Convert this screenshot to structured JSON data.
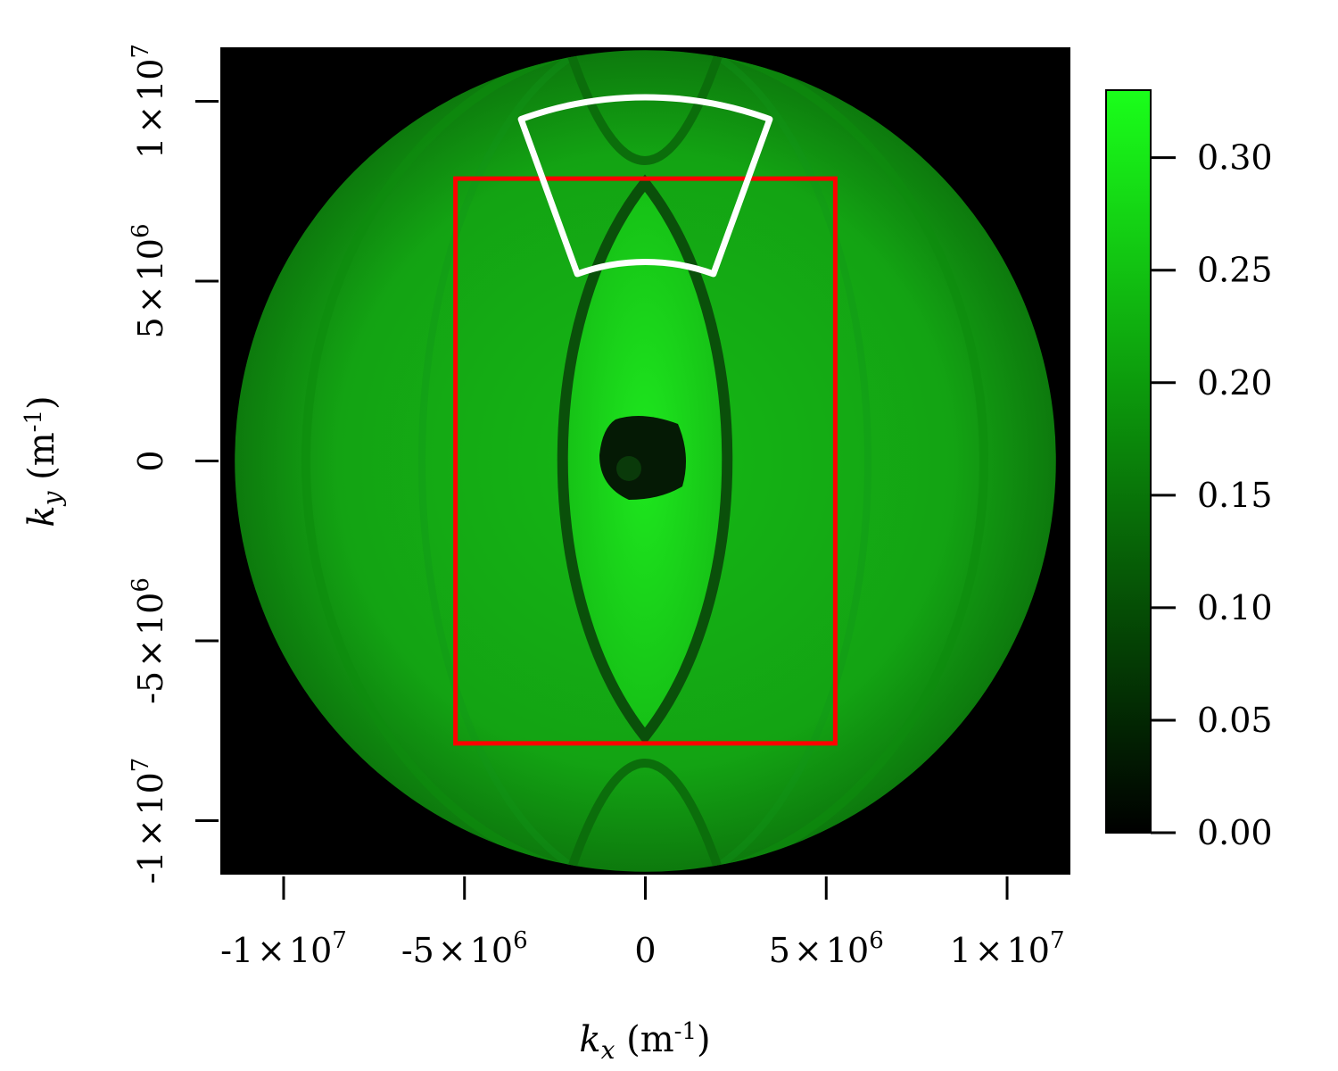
{
  "chart_data": {
    "type": "heatmap",
    "title": "",
    "xlabel": {
      "symbol": "k",
      "sub": "x",
      "unit": " (m",
      "sup": "-1",
      "close": ")"
    },
    "ylabel": {
      "symbol": "k",
      "sub": "y",
      "unit": " (m",
      "sup": "-1",
      "close": ")"
    },
    "xlim": [
      -11750000,
      11750000
    ],
    "ylim": [
      -11500000,
      11500000
    ],
    "x_ticks": [
      {
        "value": -10000000,
        "mant": "-1",
        "times": "×",
        "base": "10",
        "exp": "7"
      },
      {
        "value": -5000000,
        "mant": "-5",
        "times": "×",
        "base": "10",
        "exp": "6"
      },
      {
        "value": 0,
        "mant": "0",
        "times": "",
        "base": "",
        "exp": ""
      },
      {
        "value": 5000000,
        "mant": "5",
        "times": "×",
        "base": "10",
        "exp": "6"
      },
      {
        "value": 10000000,
        "mant": "1",
        "times": "×",
        "base": "10",
        "exp": "7"
      }
    ],
    "y_ticks": [
      {
        "value": -10000000,
        "mant": "-1",
        "times": "×",
        "base": "10",
        "exp": "7"
      },
      {
        "value": -5000000,
        "mant": "-5",
        "times": "×",
        "base": "10",
        "exp": "6"
      },
      {
        "value": 0,
        "mant": "0",
        "times": "",
        "base": "",
        "exp": ""
      },
      {
        "value": 5000000,
        "mant": "5",
        "times": "×",
        "base": "10",
        "exp": "6"
      },
      {
        "value": 10000000,
        "mant": "1",
        "times": "×",
        "base": "10",
        "exp": "7"
      }
    ],
    "disk_radius": 11350000,
    "colorbar": {
      "range": [
        0,
        0.33
      ],
      "ticks": [
        "0.00",
        "0.05",
        "0.10",
        "0.15",
        "0.20",
        "0.25",
        "0.30"
      ],
      "tick_values": [
        0,
        0.05,
        0.1,
        0.15,
        0.2,
        0.25,
        0.3
      ],
      "color_low": "#000000",
      "color_high": "#1aff1a"
    },
    "annotations": [
      {
        "type": "rectangle",
        "color": "#ff0000",
        "x": [
          -5250000,
          5250000
        ],
        "y": [
          -7850000,
          7850000
        ]
      },
      {
        "type": "annular-sector",
        "color": "#ffffff",
        "r_inner": 5500000,
        "r_outer": 10050000,
        "angle_from_vertical_deg": 20
      }
    ],
    "colors": {
      "background": "#000000",
      "disk_mid": "#12a812",
      "disk_bright": "#18e018",
      "disk_dark": "#0a5c0a"
    }
  }
}
